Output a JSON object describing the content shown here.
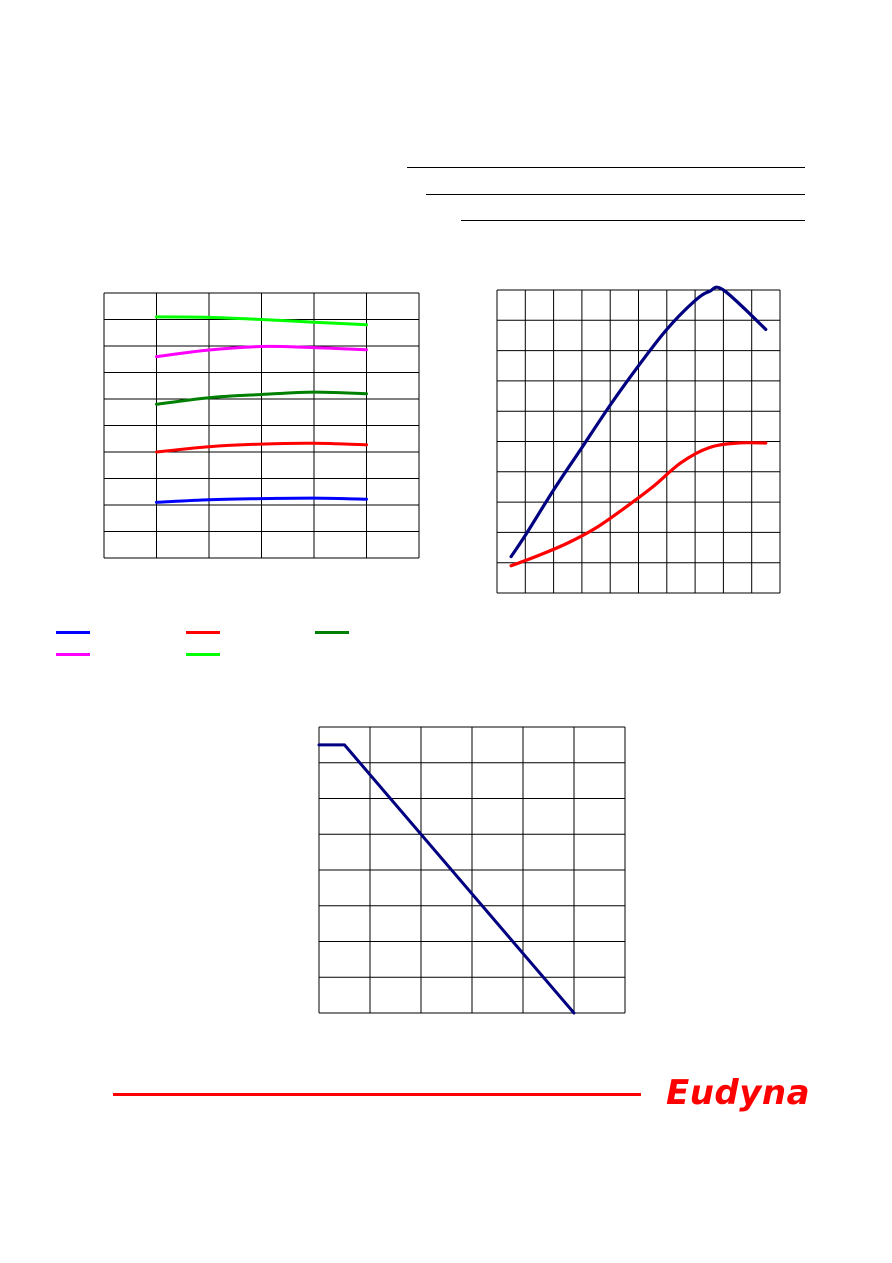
{
  "page": {
    "background": "#ffffff"
  },
  "header_rules": {
    "color": "#000000"
  },
  "chart_data": [
    {
      "type": "line",
      "title": "",
      "xlabel": "",
      "ylabel": "",
      "grid": true,
      "xlim": [
        0,
        6
      ],
      "ylim": [
        0,
        10
      ],
      "series": [
        {
          "color": "#00ff00",
          "x": [
            1,
            2,
            3,
            4,
            5
          ],
          "y": [
            9.1,
            9.08,
            9.0,
            8.9,
            8.8
          ]
        },
        {
          "color": "#ff00ff",
          "x": [
            1,
            2,
            3,
            4,
            5
          ],
          "y": [
            7.6,
            7.85,
            7.98,
            7.94,
            7.86
          ]
        },
        {
          "color": "#008000",
          "x": [
            1,
            2,
            3,
            4,
            5
          ],
          "y": [
            5.8,
            6.05,
            6.17,
            6.26,
            6.2
          ]
        },
        {
          "color": "#ff0000",
          "x": [
            1,
            2,
            3,
            4,
            5
          ],
          "y": [
            4.0,
            4.2,
            4.3,
            4.33,
            4.27
          ]
        },
        {
          "color": "#0000ff",
          "x": [
            1,
            2,
            3,
            4,
            5
          ],
          "y": [
            2.1,
            2.2,
            2.24,
            2.26,
            2.22
          ]
        }
      ]
    },
    {
      "type": "line",
      "title": "",
      "xlabel": "",
      "ylabel": "",
      "grid": true,
      "xlim": [
        0,
        10
      ],
      "ylim": [
        0,
        10
      ],
      "series": [
        {
          "color": "#000080",
          "x": [
            0.5,
            1,
            2,
            3,
            4,
            5,
            6,
            7,
            7.5,
            8,
            9.5
          ],
          "y": [
            1.2,
            1.9,
            3.4,
            4.8,
            6.2,
            7.5,
            8.7,
            9.65,
            9.95,
            10.0,
            8.7
          ]
        },
        {
          "color": "#ff0000",
          "x": [
            0.5,
            1.5,
            2.5,
            3.5,
            4.5,
            5.5,
            6.5,
            7.5,
            8.5,
            9.5
          ],
          "y": [
            0.9,
            1.25,
            1.65,
            2.15,
            2.8,
            3.5,
            4.3,
            4.8,
            4.95,
            4.95
          ]
        }
      ]
    },
    {
      "type": "line",
      "title": "",
      "xlabel": "",
      "ylabel": "",
      "grid": true,
      "xlim": [
        0,
        6
      ],
      "ylim": [
        0,
        8
      ],
      "series": [
        {
          "color": "#000080",
          "x": [
            0,
            0.5,
            5
          ],
          "y": [
            7.5,
            7.5,
            0
          ]
        }
      ]
    }
  ],
  "legend": {
    "items": [
      {
        "color": "#0000ff"
      },
      {
        "color": "#ff0000"
      },
      {
        "color": "#008000"
      },
      {
        "color": "#ff00ff"
      },
      {
        "color": "#00ff00"
      }
    ]
  },
  "footer": {
    "line_color": "#ff0000",
    "logo_text": "Eudyna",
    "logo_color": "#ff0000"
  }
}
